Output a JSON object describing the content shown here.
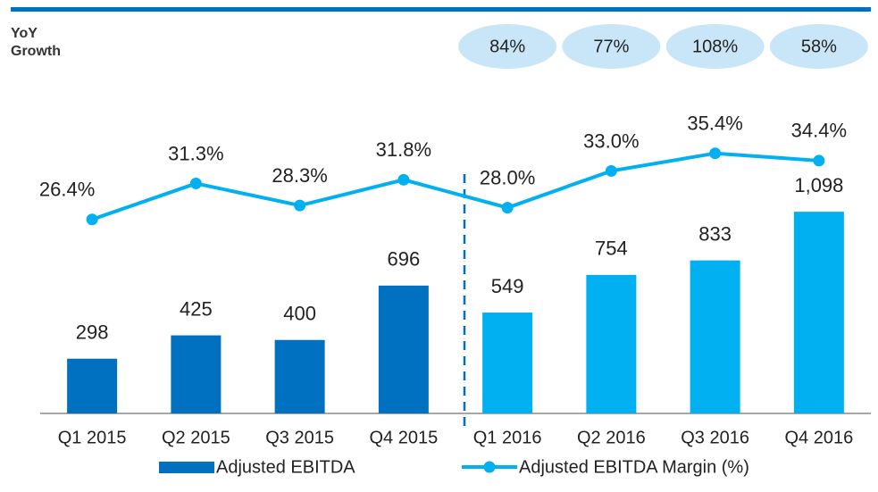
{
  "chart_data": {
    "type": "bar",
    "growth_label": "YoY Growth",
    "growth": {
      "values": [
        84,
        77,
        108,
        58
      ],
      "value_labels": [
        "84%",
        "77%",
        "108%",
        "58%"
      ],
      "color": "#c9e6f8"
    },
    "categories": [
      "Q1 2015",
      "Q2 2015",
      "Q3 2015",
      "Q4 2015",
      "Q1 2016",
      "Q2 2016",
      "Q3 2016",
      "Q4 2016"
    ],
    "series": [
      {
        "name": "Adjusted EBITDA",
        "type": "bar",
        "color": "#0070c0",
        "colors": [
          "#0070c0",
          "#0070c0",
          "#0070c0",
          "#0070c0",
          "#00b0f0",
          "#00b0f0",
          "#00b0f0",
          "#00b0f0"
        ],
        "values": [
          298,
          425,
          400,
          696,
          549,
          754,
          833,
          1098
        ],
        "value_labels": [
          "298",
          "425",
          "400",
          "696",
          "549",
          "754",
          "833",
          "1,098"
        ]
      },
      {
        "name": "Adjusted EBITDA Margin (%)",
        "type": "line",
        "axis": "y2",
        "color": "#00b0f0",
        "values": [
          26.4,
          31.3,
          28.3,
          31.8,
          28.0,
          33.0,
          35.4,
          34.4
        ],
        "value_labels": [
          "26.4%",
          "31.3%",
          "28.3%",
          "31.8%",
          "28.0%",
          "33.0%",
          "35.4%",
          "34.4%"
        ]
      }
    ],
    "ylim": [
      0,
      1400
    ],
    "y2lim": [
      0,
      35
    ]
  }
}
